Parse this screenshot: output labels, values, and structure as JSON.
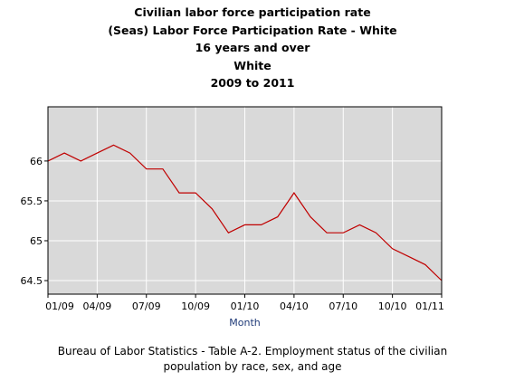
{
  "chart_data": {
    "type": "line",
    "title_lines": [
      "Civilian labor force participation rate",
      "(Seas) Labor Force Participation Rate - White",
      "16 years and over",
      "White",
      "2009 to 2011"
    ],
    "xlabel": "Month",
    "ylabel": "",
    "x_tick_labels": [
      "01/09",
      "04/09",
      "07/09",
      "10/09",
      "01/10",
      "04/10",
      "07/10",
      "10/10",
      "01/11"
    ],
    "y_tick_labels": [
      "66",
      "65.5",
      "65",
      "64.5"
    ],
    "y_ticks": [
      66,
      65.5,
      65,
      64.5
    ],
    "ylim": [
      64.33,
      66.68
    ],
    "grid": true,
    "line_color": "#c00000",
    "background_color": "#d9d9d9",
    "series": [
      {
        "x": [
          "01/09",
          "02/09",
          "03/09",
          "04/09",
          "05/09",
          "06/09",
          "07/09",
          "08/09",
          "09/09",
          "10/09",
          "11/09",
          "12/09",
          "01/10",
          "02/10",
          "03/10",
          "04/10",
          "05/10",
          "06/10",
          "07/10",
          "08/10",
          "09/10",
          "10/10",
          "11/10",
          "12/10",
          "01/11"
        ],
        "values": [
          66.0,
          66.1,
          66.0,
          66.1,
          66.2,
          66.1,
          65.9,
          65.9,
          65.6,
          65.6,
          65.4,
          65.1,
          65.2,
          65.2,
          65.3,
          65.6,
          65.3,
          65.1,
          65.1,
          65.2,
          65.1,
          64.9,
          64.8,
          64.7,
          64.5
        ]
      }
    ]
  },
  "footer": {
    "line1": "Bureau of Labor Statistics - Table A-2. Employment status of the civilian",
    "line2": "population by race, sex, and age"
  }
}
